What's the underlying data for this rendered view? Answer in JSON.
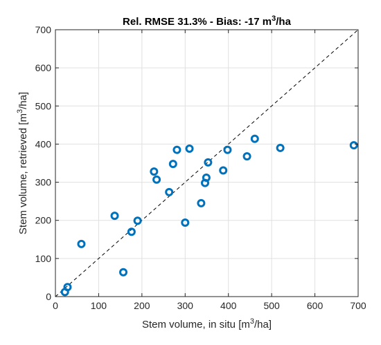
{
  "chart_data": {
    "type": "scatter",
    "title": {
      "main": "Rel. RMSE 31.3% - Bias: -17 m",
      "sup": "3",
      "tail": "/ha"
    },
    "xlabel": {
      "main": "Stem volume, in situ  [m",
      "sup": "3",
      "tail": "/ha]"
    },
    "ylabel": {
      "main": "Stem volume, retrieved  [m",
      "sup": "3",
      "tail": "/ha]"
    },
    "xlim": [
      0,
      700
    ],
    "ylim": [
      0,
      700
    ],
    "xticks": [
      "0",
      "100",
      "200",
      "300",
      "400",
      "500",
      "600",
      "700"
    ],
    "yticks": [
      "0",
      "100",
      "200",
      "300",
      "400",
      "500",
      "600",
      "700"
    ],
    "grid": true,
    "identity_line": true,
    "marker_color": "#0072BD",
    "points": [
      {
        "x": 22,
        "y": 12
      },
      {
        "x": 28,
        "y": 25
      },
      {
        "x": 60,
        "y": 138
      },
      {
        "x": 137,
        "y": 212
      },
      {
        "x": 157,
        "y": 64
      },
      {
        "x": 176,
        "y": 170
      },
      {
        "x": 190,
        "y": 199
      },
      {
        "x": 228,
        "y": 328
      },
      {
        "x": 234,
        "y": 307
      },
      {
        "x": 263,
        "y": 274
      },
      {
        "x": 272,
        "y": 348
      },
      {
        "x": 281,
        "y": 385
      },
      {
        "x": 300,
        "y": 194
      },
      {
        "x": 310,
        "y": 388
      },
      {
        "x": 337,
        "y": 245
      },
      {
        "x": 346,
        "y": 298
      },
      {
        "x": 349,
        "y": 312
      },
      {
        "x": 353,
        "y": 352
      },
      {
        "x": 388,
        "y": 331
      },
      {
        "x": 398,
        "y": 385
      },
      {
        "x": 443,
        "y": 368
      },
      {
        "x": 461,
        "y": 414
      },
      {
        "x": 520,
        "y": 390
      },
      {
        "x": 690,
        "y": 397
      }
    ]
  }
}
